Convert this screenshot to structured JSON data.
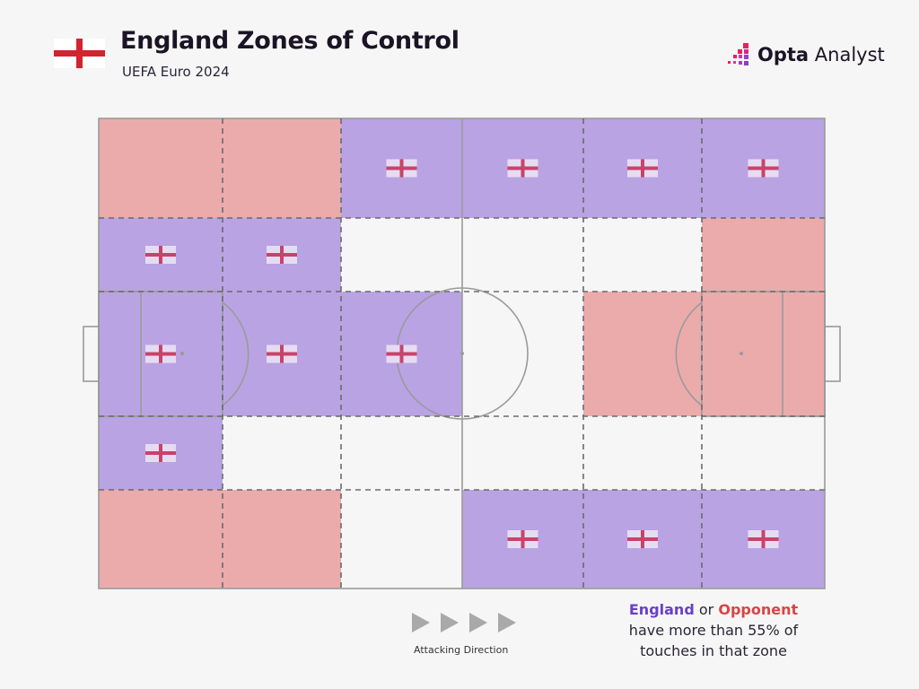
{
  "header": {
    "title": "England Zones of Control",
    "subtitle": "UEFA Euro 2024",
    "flag_icon": "england-flag-icon"
  },
  "logo": {
    "bold": "Opta",
    "regular": "Analyst"
  },
  "legend": {
    "england": "England",
    "or": "or",
    "opponent": "Opponent",
    "line2": "have more than 55% of",
    "line3": "touches in that zone"
  },
  "attacking_direction": "Attacking Direction",
  "colors": {
    "england": "#b9a3e3",
    "opponent": "#ebabab",
    "england_text": "#6a3fc9",
    "opponent_text": "#d94545",
    "neutral": "#f6f6f6"
  },
  "chart_data": {
    "type": "heatmap",
    "title": "England Zones of Control",
    "subtitle": "UEFA Euro 2024",
    "threshold_pct": 55,
    "columns": 6,
    "rows": 5,
    "grid": [
      [
        "opponent",
        "opponent",
        "england",
        "england",
        "england",
        "england"
      ],
      [
        "england",
        "england",
        "none",
        "none",
        "none",
        "opponent"
      ],
      [
        "england",
        "england",
        "england",
        "none",
        "opponent",
        "opponent"
      ],
      [
        "england",
        "none",
        "none",
        "none",
        "none",
        "none"
      ],
      [
        "opponent",
        "opponent",
        "none",
        "england",
        "england",
        "england"
      ]
    ]
  }
}
